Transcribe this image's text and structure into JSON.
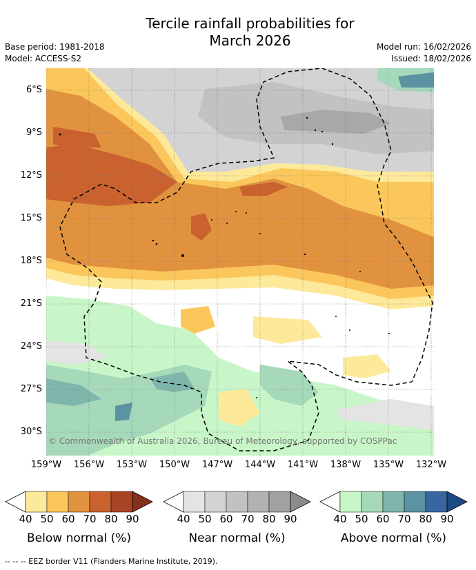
{
  "title_line1": "Tercile rainfall probabilities for",
  "title_line2": "March 2026",
  "meta": {
    "base_period": "Base period: 1981-2018",
    "model": "Model: ACCESS-S2",
    "model_run": "Model run: 16/02/2026",
    "issued": "Issued: 18/02/2026"
  },
  "axes": {
    "lat_labels": [
      "6°S",
      "9°S",
      "12°S",
      "15°S",
      "18°S",
      "21°S",
      "24°S",
      "27°S",
      "30°S"
    ],
    "lon_labels": [
      "159°W",
      "156°W",
      "153°W",
      "150°W",
      "147°W",
      "144°W",
      "141°W",
      "138°W",
      "135°W",
      "132°W"
    ]
  },
  "copyright": "© Commonwealth of Australia 2026, Bureau of Meteorology, supported by COSPPac",
  "colorbars": [
    {
      "title": "Below normal (%)",
      "ticks": [
        "40",
        "50",
        "60",
        "70",
        "80",
        "90"
      ],
      "colors": [
        "#fde99a",
        "#fbc75c",
        "#e1923f",
        "#c9622f",
        "#a94325",
        "#86301c"
      ]
    },
    {
      "title": "Near normal (%)",
      "ticks": [
        "40",
        "50",
        "60",
        "70",
        "80",
        "90"
      ],
      "colors": [
        "#e4e4e4",
        "#d3d3d3",
        "#c2c2c2",
        "#b2b2b2",
        "#a1a1a1",
        "#8c8c8c"
      ]
    },
    {
      "title": "Above normal (%)",
      "ticks": [
        "40",
        "50",
        "60",
        "70",
        "80",
        "90"
      ],
      "colors": [
        "#c8f6c8",
        "#a6d8ba",
        "#7fb6ac",
        "#5b93a3",
        "#3866a0",
        "#1d4a85"
      ]
    }
  ],
  "footnote": "-- -- -- EEZ border V11 (Flanders Marine Institute, 2019).",
  "colors": {
    "grid": "#666666",
    "eez": "#000000",
    "contour": "#ffffff"
  }
}
